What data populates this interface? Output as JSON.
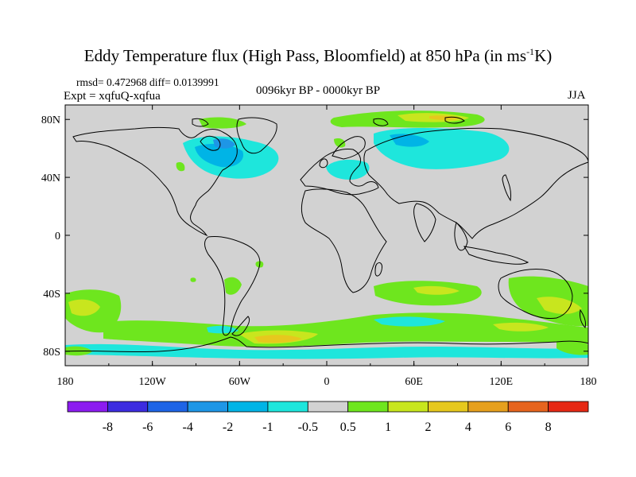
{
  "title": {
    "main": "Eddy Temperature flux (High Pass, Bloomfield) at 850 hPa (in ms",
    "sup": "-1",
    "end": "K)"
  },
  "subtitle": {
    "stats": "rmsd= 0.472968 diff= 0.0139991",
    "expt": "Expt = xqfuQ-xqfua",
    "period": "0096kyr BP - 0000kyr BP",
    "season": "JJA"
  },
  "axes": {
    "lat_labels": [
      "80N",
      "40N",
      "0",
      "40S",
      "80S"
    ],
    "lon_labels": [
      "180",
      "120W",
      "60W",
      "0",
      "60E",
      "120E",
      "180"
    ]
  },
  "colorbar": {
    "labels": [
      "-8",
      "-6",
      "-4",
      "-2",
      "-1",
      "-0.5",
      "0.5",
      "1",
      "2",
      "4",
      "6",
      "8"
    ],
    "colors": [
      "#8c1cf0",
      "#3c2ce0",
      "#1e64e6",
      "#1e96e6",
      "#00b4e6",
      "#1ee6dc",
      "#d2d2d2",
      "#6ee61e",
      "#c8e61e",
      "#e6c81e",
      "#e6a01e",
      "#e6641e",
      "#e62814"
    ],
    "background_color": "#d2d2d2"
  },
  "chart_data": {
    "type": "heatmap",
    "xlim": [
      -180,
      180
    ],
    "ylim": [
      -90,
      90
    ],
    "x_ticks": [
      -180,
      -120,
      -60,
      0,
      60,
      120,
      180
    ],
    "y_ticks": [
      80,
      40,
      0,
      -40,
      -80
    ],
    "levels": [
      -8,
      -6,
      -4,
      -2,
      -1,
      -0.5,
      0.5,
      1,
      2,
      4,
      6,
      8
    ],
    "regions": [
      {
        "name": "north-atlantic-negative",
        "lon": -90,
        "lat": 52,
        "w": 60,
        "h": 20,
        "level": "-1..-0.5"
      },
      {
        "name": "eurasia-negative",
        "lon": 70,
        "lat": 60,
        "w": 60,
        "h": 20,
        "level": "-1..-0.5"
      },
      {
        "name": "arctic-positive",
        "lon": 60,
        "lat": 85,
        "w": 70,
        "h": 10,
        "level": "1..2"
      },
      {
        "name": "southern-ocean-positive",
        "lon": -30,
        "lat": -75,
        "w": 60,
        "h": 10,
        "level": "2..4"
      },
      {
        "name": "south-indian-positive",
        "lon": 70,
        "lat": -42,
        "w": 50,
        "h": 10,
        "level": "0.5..1"
      },
      {
        "name": "south-pacific-positive",
        "lon": -160,
        "lat": -55,
        "w": 30,
        "h": 15,
        "level": "1..2"
      },
      {
        "name": "antarctic-negative",
        "lon": -80,
        "lat": -82,
        "w": 100,
        "h": 6,
        "level": "-1..-0.5"
      }
    ]
  }
}
